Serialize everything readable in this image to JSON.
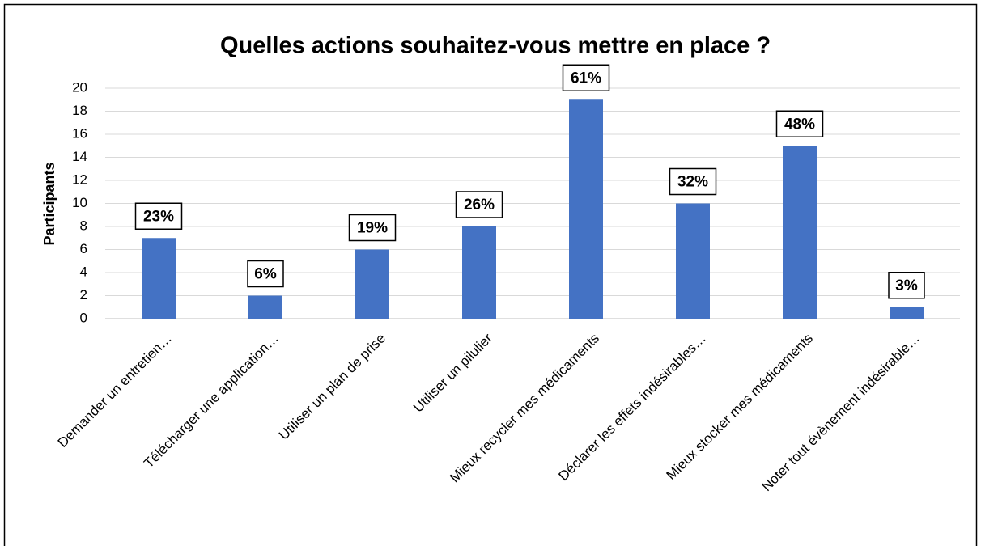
{
  "chart_data": {
    "type": "bar",
    "title": "Quelles actions souhaitez-vous mettre en place ?",
    "y_label": "Participants",
    "categories": [
      "Demander un entretien…",
      "Télécharger une application…",
      "Utiliser un plan de prise",
      "Utiliser un pilulier",
      "Mieux recycler mes médicaments",
      "Déclarer les effets indésirables…",
      "Mieux stocker mes médicaments",
      "Noter tout évènement indésirable…"
    ],
    "values": [
      7,
      2,
      6,
      8,
      19,
      10,
      15,
      1
    ],
    "data_labels": [
      "23%",
      "6%",
      "19%",
      "26%",
      "61%",
      "32%",
      "48%",
      "3%"
    ],
    "color": "#4472c4",
    "ylim": [
      0,
      20
    ],
    "yticks": [
      0,
      2,
      4,
      6,
      8,
      10,
      12,
      14,
      16,
      18,
      20
    ],
    "grid": true
  }
}
